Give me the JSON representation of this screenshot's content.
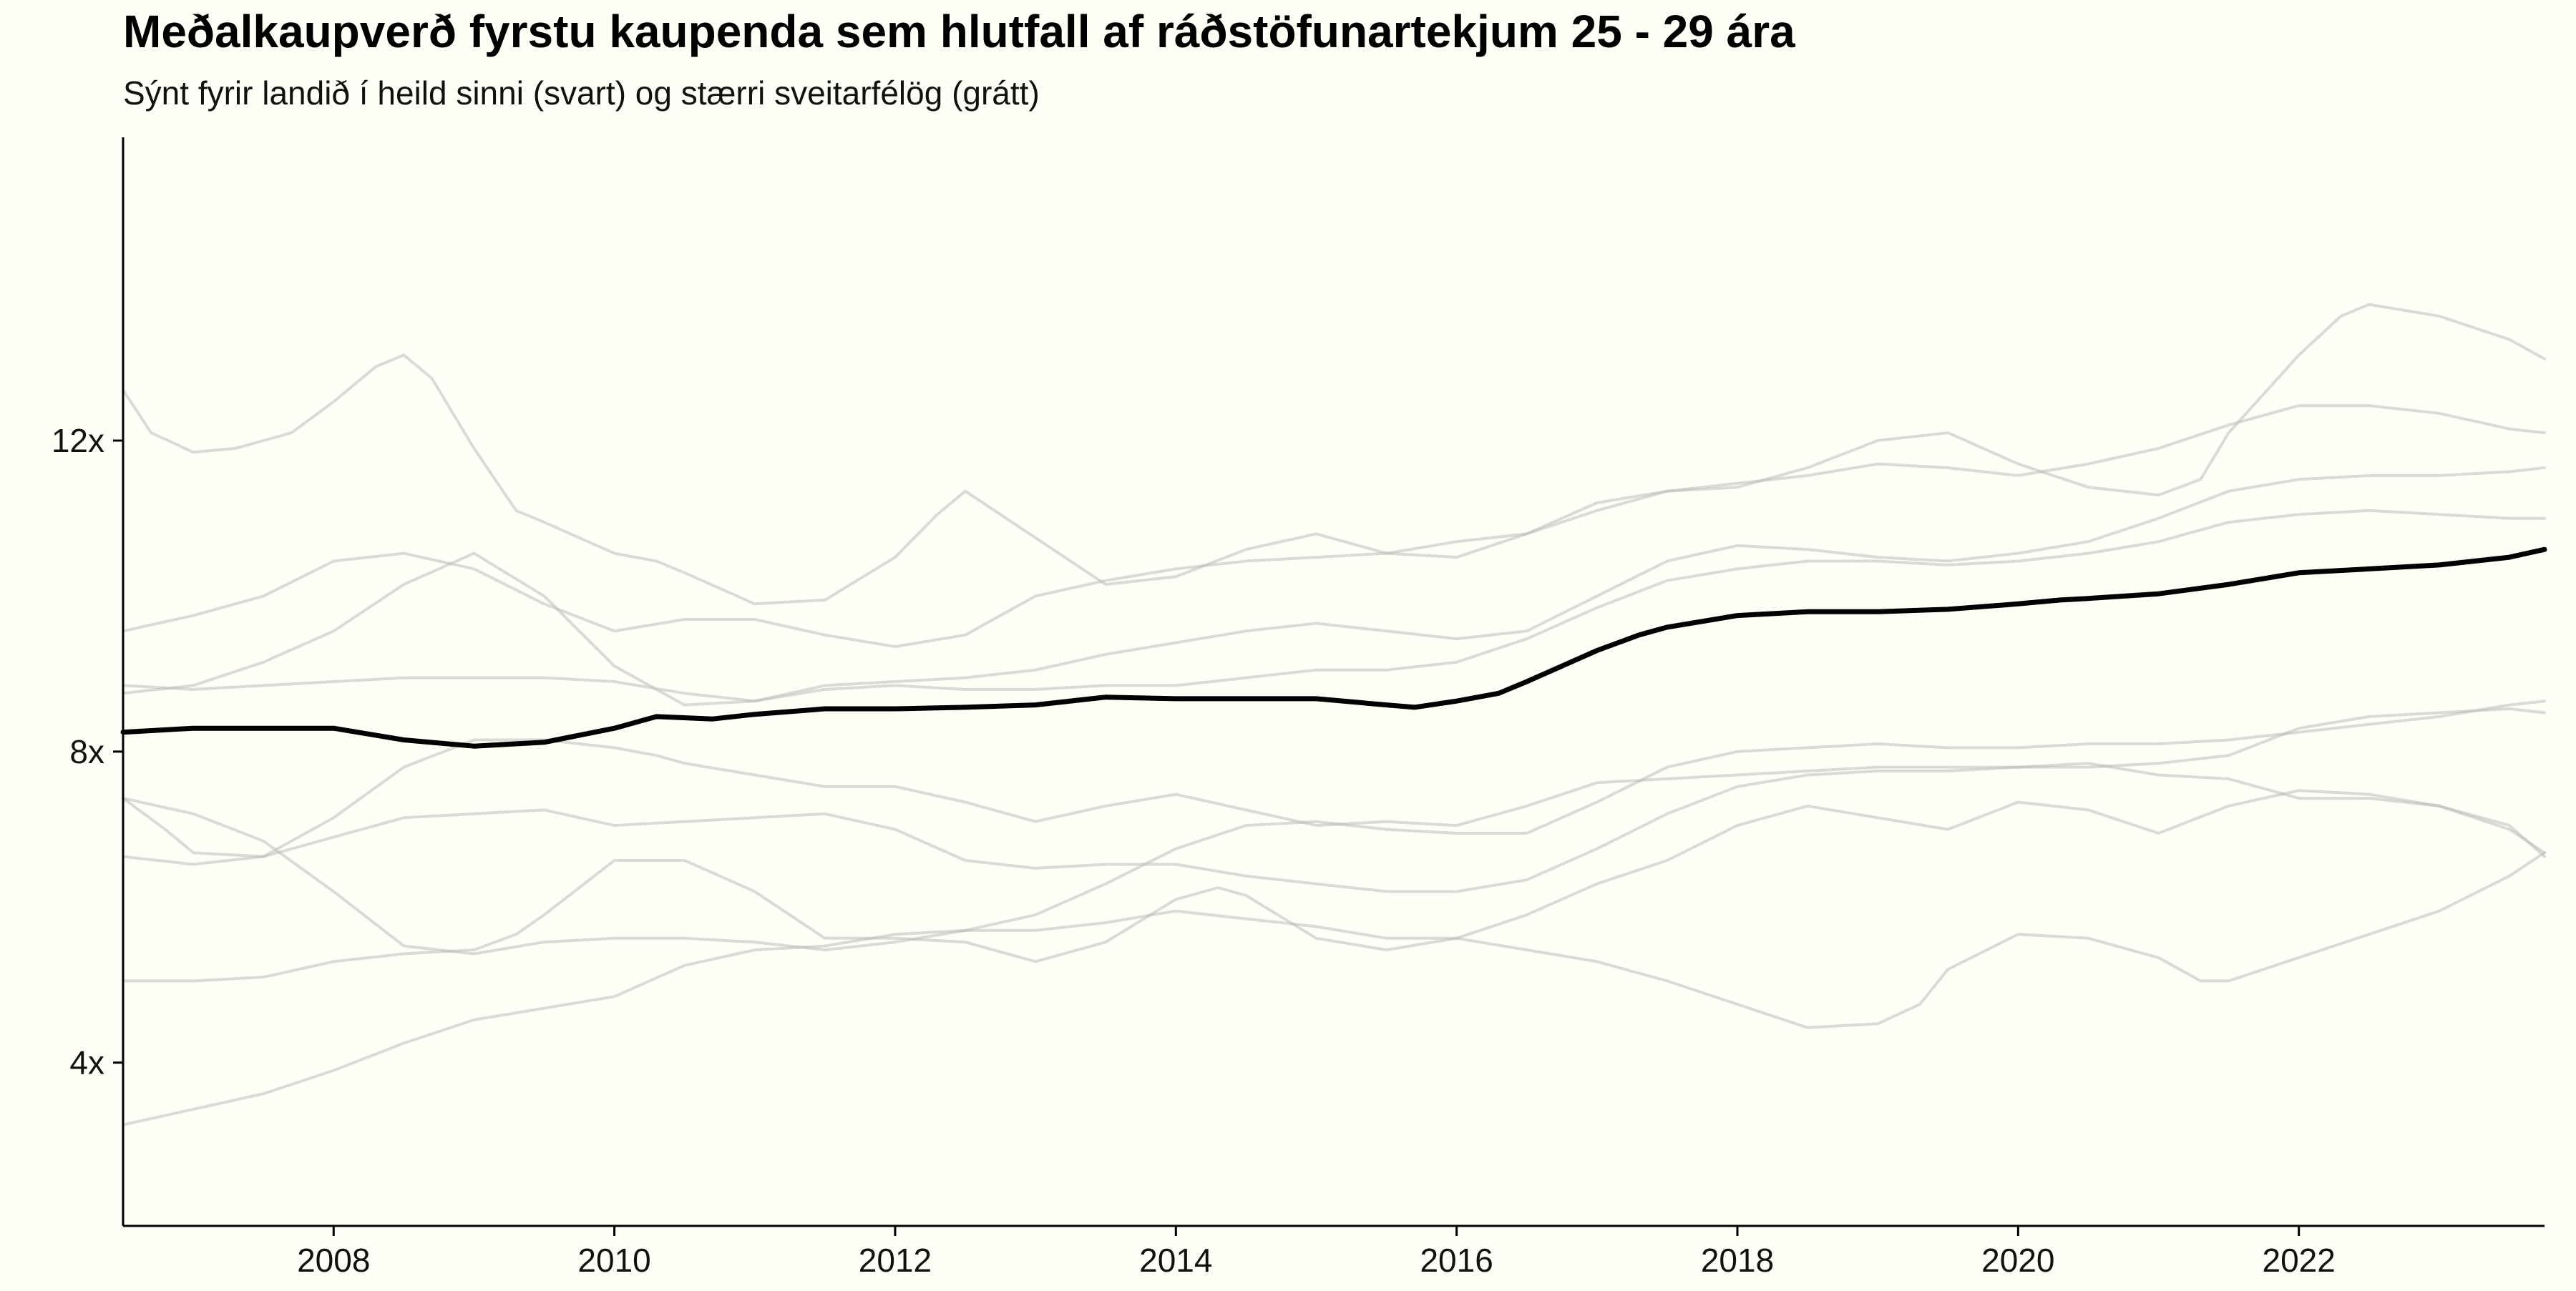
{
  "chart_data": {
    "type": "line",
    "title": "Meðalkaupverð fyrstu kaupenda sem hlutfall af ráðstöfunartekjum 25 - 29 ára",
    "subtitle": "Sýnt fyrir landið í heild sinni (svart) og stærri sveitarfélög (grátt)",
    "xlabel": "",
    "ylabel": "",
    "xlim": [
      2006.5,
      2023.75
    ],
    "ylim": [
      1.9,
      15.9
    ],
    "x_ticks": [
      {
        "value": 2008,
        "label": "2008"
      },
      {
        "value": 2010,
        "label": "2010"
      },
      {
        "value": 2012,
        "label": "2012"
      },
      {
        "value": 2014,
        "label": "2014"
      },
      {
        "value": 2016,
        "label": "2016"
      },
      {
        "value": 2018,
        "label": "2018"
      },
      {
        "value": 2020,
        "label": "2020"
      },
      {
        "value": 2022,
        "label": "2022"
      }
    ],
    "y_ticks": [
      {
        "value": 4,
        "label": "4x"
      },
      {
        "value": 8,
        "label": "8x"
      },
      {
        "value": 12,
        "label": "12x"
      }
    ],
    "grid": false,
    "legend": "none",
    "colors": {
      "national": "#000000",
      "municipality": "#bbbbbb",
      "background": "#fffef7"
    },
    "series": [
      {
        "role": "national",
        "x": [
          2006.5,
          2007.0,
          2007.5,
          2008.0,
          2008.5,
          2009.0,
          2009.5,
          2010.0,
          2010.3,
          2010.7,
          2011.0,
          2011.5,
          2012.0,
          2012.5,
          2013.0,
          2013.5,
          2014.0,
          2014.5,
          2015.0,
          2015.5,
          2015.7,
          2016.0,
          2016.3,
          2016.5,
          2017.0,
          2017.3,
          2017.5,
          2018.0,
          2018.5,
          2019.0,
          2019.5,
          2020.0,
          2020.3,
          2020.5,
          2021.0,
          2021.5,
          2022.0,
          2022.5,
          2023.0,
          2023.5,
          2023.75
        ],
        "y": [
          8.25,
          8.3,
          8.3,
          8.3,
          8.15,
          8.07,
          8.12,
          8.3,
          8.45,
          8.42,
          8.48,
          8.55,
          8.55,
          8.57,
          8.6,
          8.7,
          8.68,
          8.68,
          8.68,
          8.6,
          8.57,
          8.65,
          8.75,
          8.9,
          9.3,
          9.5,
          9.6,
          9.75,
          9.8,
          9.8,
          9.83,
          9.9,
          9.95,
          9.97,
          10.03,
          10.15,
          10.3,
          10.35,
          10.4,
          10.5,
          10.6
        ]
      },
      {
        "role": "municipality",
        "x": [
          2006.5,
          2006.7,
          2007.0,
          2007.3,
          2007.7,
          2008.0,
          2008.3,
          2008.5,
          2008.7,
          2009.0,
          2009.3,
          2009.5,
          2010.0,
          2010.3,
          2010.5,
          2011.0,
          2011.5,
          2012.0,
          2012.3,
          2012.5,
          2013.0,
          2013.5,
          2014.0,
          2014.5,
          2015.0,
          2015.5,
          2016.0,
          2016.5,
          2017.0,
          2017.5,
          2018.0,
          2018.5,
          2019.0,
          2019.5,
          2020.0,
          2020.5,
          2021.0,
          2021.3,
          2021.5,
          2022.0,
          2022.3,
          2022.5,
          2023.0,
          2023.5,
          2023.75
        ],
        "y": [
          12.65,
          12.1,
          11.85,
          11.9,
          12.1,
          12.5,
          12.95,
          13.1,
          12.8,
          11.9,
          11.1,
          10.95,
          10.55,
          10.45,
          10.3,
          9.9,
          9.95,
          10.5,
          11.05,
          11.35,
          10.75,
          10.15,
          10.25,
          10.6,
          10.8,
          10.55,
          10.5,
          10.8,
          11.2,
          11.35,
          11.4,
          11.65,
          12.0,
          12.1,
          11.7,
          11.4,
          11.3,
          11.5,
          12.1,
          13.1,
          13.6,
          13.75,
          13.6,
          13.3,
          13.05
        ]
      },
      {
        "role": "municipality",
        "x": [
          2006.5,
          2007.0,
          2007.5,
          2008.0,
          2008.5,
          2009.0,
          2009.5,
          2010.0,
          2010.5,
          2011.0,
          2011.5,
          2012.0,
          2012.5,
          2013.0,
          2013.5,
          2014.0,
          2014.5,
          2015.0,
          2015.5,
          2016.0,
          2016.5,
          2017.0,
          2017.5,
          2018.0,
          2018.5,
          2019.0,
          2019.5,
          2020.0,
          2020.5,
          2021.0,
          2021.5,
          2022.0,
          2022.5,
          2023.0,
          2023.5,
          2023.75
        ],
        "y": [
          9.55,
          9.75,
          10.0,
          10.45,
          10.55,
          10.35,
          9.9,
          9.55,
          9.7,
          9.7,
          9.5,
          9.35,
          9.5,
          10.0,
          10.2,
          10.35,
          10.45,
          10.5,
          10.55,
          10.7,
          10.8,
          11.1,
          11.35,
          11.45,
          11.55,
          11.7,
          11.65,
          11.55,
          11.7,
          11.9,
          12.2,
          12.45,
          12.45,
          12.35,
          12.15,
          12.1
        ]
      },
      {
        "role": "municipality",
        "x": [
          2006.5,
          2007.0,
          2007.5,
          2008.0,
          2008.5,
          2009.0,
          2009.5,
          2010.0,
          2010.5,
          2011.0,
          2011.5,
          2012.0,
          2012.5,
          2013.0,
          2013.5,
          2014.0,
          2014.5,
          2015.0,
          2015.5,
          2016.0,
          2016.5,
          2017.0,
          2017.5,
          2018.0,
          2018.5,
          2019.0,
          2019.5,
          2020.0,
          2020.5,
          2021.0,
          2021.5,
          2022.0,
          2022.5,
          2023.0,
          2023.5,
          2023.75
        ],
        "y": [
          8.75,
          8.85,
          9.15,
          9.55,
          10.15,
          10.55,
          10.0,
          9.1,
          8.6,
          8.65,
          8.85,
          8.9,
          8.95,
          9.05,
          9.25,
          9.4,
          9.55,
          9.65,
          9.55,
          9.45,
          9.55,
          10.0,
          10.45,
          10.65,
          10.6,
          10.5,
          10.45,
          10.55,
          10.7,
          11.0,
          11.35,
          11.5,
          11.55,
          11.55,
          11.6,
          11.65
        ]
      },
      {
        "role": "municipality",
        "x": [
          2006.5,
          2007.0,
          2007.5,
          2008.0,
          2008.5,
          2009.0,
          2009.5,
          2010.0,
          2010.5,
          2011.0,
          2011.5,
          2012.0,
          2012.5,
          2013.0,
          2013.5,
          2014.0,
          2014.5,
          2015.0,
          2015.5,
          2016.0,
          2016.5,
          2017.0,
          2017.5,
          2018.0,
          2018.5,
          2019.0,
          2019.5,
          2020.0,
          2020.5,
          2021.0,
          2021.5,
          2022.0,
          2022.5,
          2023.0,
          2023.5,
          2023.75
        ],
        "y": [
          8.85,
          8.8,
          8.85,
          8.9,
          8.95,
          8.95,
          8.95,
          8.9,
          8.75,
          8.65,
          8.8,
          8.85,
          8.8,
          8.8,
          8.85,
          8.85,
          8.95,
          9.05,
          9.05,
          9.15,
          9.45,
          9.85,
          10.2,
          10.35,
          10.45,
          10.45,
          10.4,
          10.45,
          10.55,
          10.7,
          10.95,
          11.05,
          11.1,
          11.05,
          11.0,
          11.0
        ]
      },
      {
        "role": "municipality",
        "x": [
          2006.5,
          2007.0,
          2007.5,
          2008.0,
          2008.5,
          2009.0,
          2009.5,
          2010.0,
          2010.5,
          2011.0,
          2011.5,
          2012.0,
          2012.5,
          2013.0,
          2013.5,
          2014.0,
          2014.5,
          2015.0,
          2015.5,
          2016.0,
          2016.5,
          2017.0,
          2017.5,
          2018.0,
          2018.5,
          2019.0,
          2019.5,
          2020.0,
          2020.5,
          2021.0,
          2021.5,
          2022.0,
          2022.5,
          2023.0,
          2023.5,
          2023.75
        ],
        "y": [
          7.4,
          7.2,
          6.85,
          6.2,
          5.5,
          5.4,
          5.55,
          5.6,
          5.6,
          5.55,
          5.45,
          5.55,
          5.7,
          5.9,
          6.3,
          6.75,
          7.05,
          7.1,
          7.0,
          6.95,
          6.95,
          7.35,
          7.8,
          8.0,
          8.05,
          8.1,
          8.05,
          8.05,
          8.1,
          8.1,
          8.15,
          8.25,
          8.35,
          8.45,
          8.6,
          8.65
        ]
      },
      {
        "role": "municipality",
        "x": [
          2006.5,
          2006.8,
          2007.0,
          2007.5,
          2008.0,
          2008.5,
          2009.0,
          2009.5,
          2010.0,
          2010.3,
          2010.5,
          2011.0,
          2011.5,
          2012.0,
          2012.5,
          2013.0,
          2013.5,
          2014.0,
          2014.5,
          2015.0,
          2015.5,
          2016.0,
          2016.5,
          2017.0,
          2017.5,
          2018.0,
          2018.5,
          2019.0,
          2019.5,
          2020.0,
          2020.5,
          2021.0,
          2021.5,
          2022.0,
          2022.5,
          2023.0,
          2023.5,
          2023.75
        ],
        "y": [
          7.4,
          7.0,
          6.7,
          6.65,
          7.15,
          7.8,
          8.15,
          8.15,
          8.05,
          7.95,
          7.85,
          7.7,
          7.55,
          7.55,
          7.35,
          7.1,
          7.3,
          7.45,
          7.25,
          7.05,
          7.1,
          7.05,
          7.3,
          7.6,
          7.65,
          7.7,
          7.75,
          7.8,
          7.8,
          7.8,
          7.8,
          7.85,
          7.95,
          8.3,
          8.45,
          8.5,
          8.55,
          8.5
        ]
      },
      {
        "role": "municipality",
        "x": [
          2006.5,
          2007.0,
          2007.5,
          2008.0,
          2008.5,
          2009.0,
          2009.5,
          2010.0,
          2010.5,
          2011.0,
          2011.5,
          2012.0,
          2012.5,
          2013.0,
          2013.5,
          2014.0,
          2014.5,
          2015.0,
          2015.5,
          2016.0,
          2016.5,
          2017.0,
          2017.5,
          2018.0,
          2018.5,
          2019.0,
          2019.5,
          2020.0,
          2020.5,
          2021.0,
          2021.5,
          2022.0,
          2022.5,
          2023.0,
          2023.5,
          2023.75
        ],
        "y": [
          6.65,
          6.55,
          6.65,
          6.9,
          7.15,
          7.2,
          7.25,
          7.05,
          7.1,
          7.15,
          7.2,
          7.0,
          6.6,
          6.5,
          6.55,
          6.55,
          6.4,
          6.3,
          6.2,
          6.2,
          6.35,
          6.75,
          7.2,
          7.55,
          7.7,
          7.75,
          7.75,
          7.8,
          7.85,
          7.7,
          7.65,
          7.4,
          7.4,
          7.3,
          7.05,
          6.65
        ]
      },
      {
        "role": "municipality",
        "x": [
          2006.5,
          2007.0,
          2007.5,
          2008.0,
          2008.5,
          2009.0,
          2009.3,
          2009.5,
          2010.0,
          2010.5,
          2011.0,
          2011.5,
          2012.0,
          2012.5,
          2013.0,
          2013.5,
          2014.0,
          2014.3,
          2014.5,
          2015.0,
          2015.5,
          2016.0,
          2016.5,
          2017.0,
          2017.5,
          2018.0,
          2018.5,
          2019.0,
          2019.5,
          2020.0,
          2020.5,
          2021.0,
          2021.5,
          2022.0,
          2022.5,
          2023.0,
          2023.5,
          2023.75
        ],
        "y": [
          5.05,
          5.05,
          5.1,
          5.3,
          5.4,
          5.45,
          5.65,
          5.9,
          6.6,
          6.6,
          6.2,
          5.6,
          5.6,
          5.55,
          5.3,
          5.55,
          6.1,
          6.25,
          6.15,
          5.6,
          5.45,
          5.6,
          5.9,
          6.3,
          6.6,
          7.05,
          7.3,
          7.15,
          7.0,
          7.35,
          7.25,
          6.95,
          7.3,
          7.5,
          7.45,
          7.3,
          7.0,
          6.7
        ]
      },
      {
        "role": "municipality",
        "x": [
          2006.5,
          2007.0,
          2007.5,
          2008.0,
          2008.5,
          2009.0,
          2009.5,
          2010.0,
          2010.5,
          2011.0,
          2011.5,
          2012.0,
          2012.5,
          2013.0,
          2013.5,
          2014.0,
          2014.5,
          2015.0,
          2015.5,
          2016.0,
          2016.5,
          2017.0,
          2017.5,
          2018.0,
          2018.5,
          2019.0,
          2019.3,
          2019.5,
          2020.0,
          2020.5,
          2021.0,
          2021.3,
          2021.5,
          2022.0,
          2022.5,
          2023.0,
          2023.5,
          2023.75
        ],
        "y": [
          3.2,
          3.4,
          3.6,
          3.9,
          4.25,
          4.55,
          4.7,
          4.85,
          5.25,
          5.45,
          5.5,
          5.65,
          5.7,
          5.7,
          5.8,
          5.95,
          5.85,
          5.75,
          5.6,
          5.6,
          5.45,
          5.3,
          5.05,
          4.75,
          4.45,
          4.5,
          4.75,
          5.2,
          5.65,
          5.6,
          5.35,
          5.05,
          5.05,
          5.35,
          5.65,
          5.95,
          6.4,
          6.7
        ]
      }
    ]
  }
}
